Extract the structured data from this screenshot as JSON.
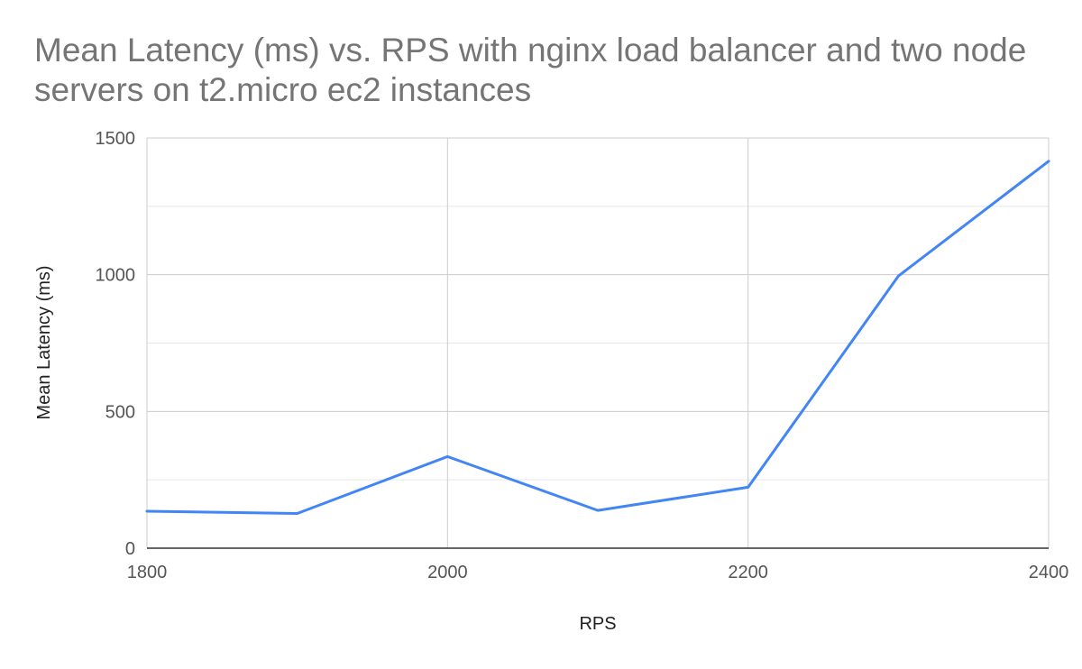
{
  "chart_data": {
    "type": "line",
    "title": "Mean Latency (ms) vs. RPS with nginx load balancer and two node servers on t2.micro ec2 instances",
    "xlabel": "RPS",
    "ylabel": "Mean Latency (ms)",
    "xlim": [
      1800,
      2400
    ],
    "ylim": [
      0,
      1500
    ],
    "x_ticks": [
      1800,
      2000,
      2200,
      2400
    ],
    "y_ticks": [
      0,
      500,
      1000,
      1500
    ],
    "y_minor_gridlines": [
      250,
      750,
      1250
    ],
    "grid": true,
    "legend": "none",
    "series": [
      {
        "color": "#4285F4",
        "x": [
          1800,
          1900,
          2000,
          2100,
          2200,
          2300,
          2400
        ],
        "y": [
          135,
          127,
          335,
          138,
          223,
          995,
          1415
        ]
      }
    ]
  }
}
